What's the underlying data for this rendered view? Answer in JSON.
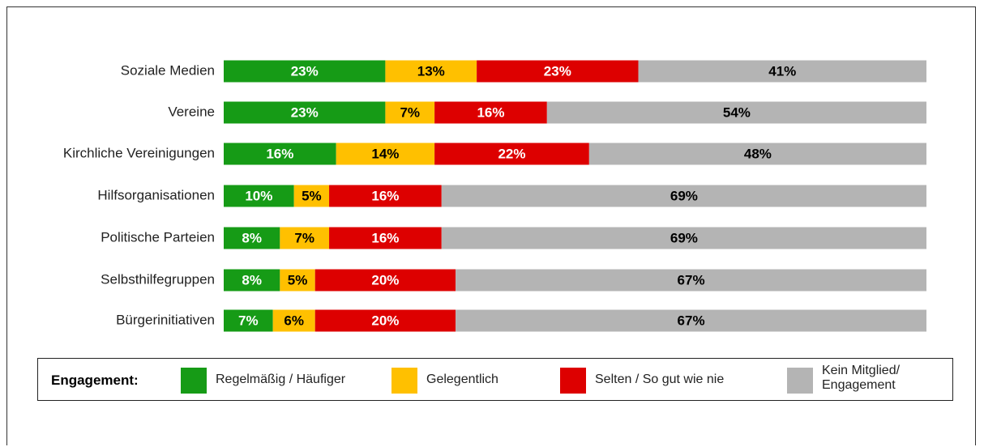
{
  "chart_data": {
    "type": "stacked_barh",
    "categories": [
      "Soziale Medien",
      "Vereine",
      "Kirchliche Vereinigungen",
      "Hilfsorganisationen",
      "Politische Parteien",
      "Selbsthilfegruppen",
      "Bürgerinitiativen"
    ],
    "xlim": [
      0,
      100
    ],
    "legend_title": "Engagement:",
    "series": [
      {
        "name": "Regelmäßig / Häufiger",
        "color": "#169b16",
        "label_color": "#ffffff",
        "values": [
          23,
          23,
          16,
          10,
          8,
          8,
          7
        ],
        "value_labels": [
          "23%",
          "23%",
          "16%",
          "10%",
          "8%",
          "8%",
          "7%"
        ]
      },
      {
        "name": "Gelegentlich",
        "color": "#ffc000",
        "label_color": "#000000",
        "values": [
          13,
          7,
          14,
          5,
          7,
          5,
          6
        ],
        "value_labels": [
          "13%",
          "7%",
          "14%",
          "5%",
          "7%",
          "5%",
          "6%"
        ]
      },
      {
        "name": "Selten / So gut wie nie",
        "color": "#dd0000",
        "label_color": "#ffffff",
        "values": [
          23,
          16,
          22,
          16,
          16,
          20,
          20
        ],
        "value_labels": [
          "23%",
          "16%",
          "22%",
          "16%",
          "16%",
          "20%",
          "20%"
        ]
      },
      {
        "name": "Kein Mitglied/ Engagement",
        "color": "#b4b4b4",
        "label_color": "#000000",
        "values": [
          41,
          54,
          48,
          69,
          69,
          67,
          67
        ],
        "value_labels": [
          "41%",
          "54%",
          "48%",
          "69%",
          "69%",
          "67%",
          "67%"
        ]
      }
    ]
  }
}
